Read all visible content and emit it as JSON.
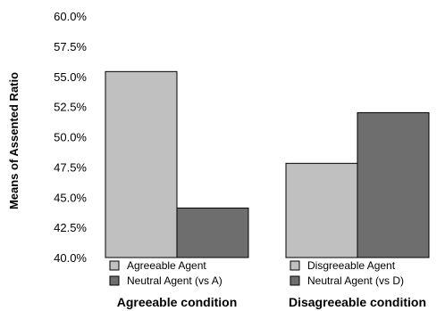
{
  "chart_data": {
    "type": "bar",
    "ylabel": "Means of Assented Ratio",
    "ylim": [
      40.0,
      60.0
    ],
    "yticks": [
      "60.0%",
      "57.5%",
      "55.0%",
      "52.5%",
      "50.0%",
      "47.5%",
      "45.0%",
      "42.5%",
      "40.0%"
    ],
    "ytick_values": [
      60.0,
      57.5,
      55.0,
      52.5,
      50.0,
      47.5,
      45.0,
      42.5,
      40.0
    ],
    "grid": false,
    "groups": [
      {
        "name": "Agreeable condition",
        "bars": [
          {
            "label": "Agreeable Agent",
            "value": 55.4,
            "color": "#c0c0c0"
          },
          {
            "label": "Neutral Agent (vs A)",
            "value": 44.1,
            "color": "#6e6e6e"
          }
        ]
      },
      {
        "name": "Disagreeable condition",
        "bars": [
          {
            "label": "Disgreeable Agent",
            "value": 47.8,
            "color": "#c0c0c0"
          },
          {
            "label": "Neutral Agent (vs D)",
            "value": 52.0,
            "color": "#6e6e6e"
          }
        ]
      }
    ],
    "legend_placement": "below each group"
  }
}
